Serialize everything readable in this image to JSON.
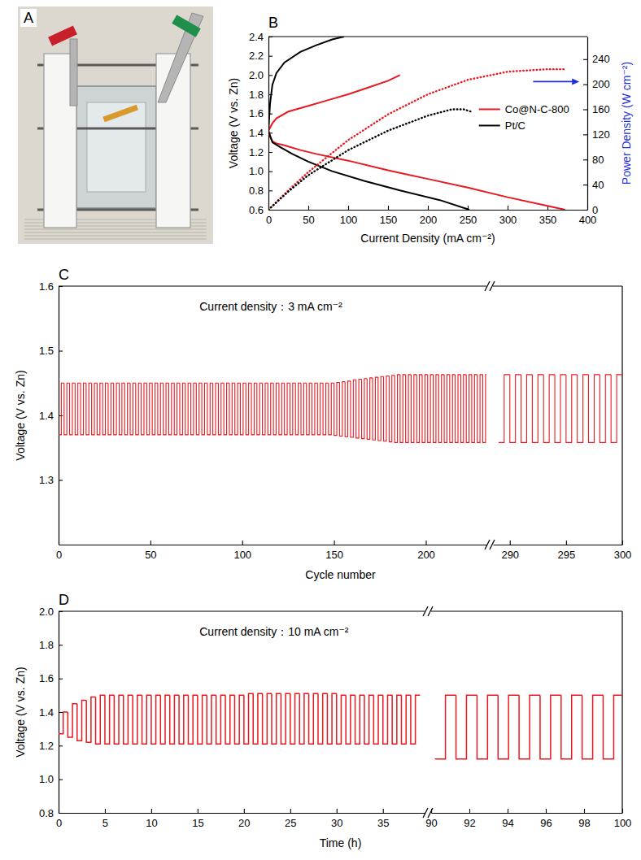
{
  "photo": {
    "panel": "A"
  },
  "chart_data": [
    {
      "panel": "B",
      "type": "line",
      "xlabel": "Current Density (mA cm⁻²)",
      "ylabel": "Voltage (V vs. Zn)",
      "y2label": "Power Density (W cm⁻²)",
      "xlim": [
        0,
        400
      ],
      "xticks": [
        0,
        50,
        100,
        150,
        200,
        250,
        300,
        350,
        400
      ],
      "ylim": [
        0.6,
        2.4
      ],
      "yticks": [
        0.6,
        0.8,
        {
          "value": 1,
          "label": "1.0"
        },
        1.2,
        1.4,
        1.6,
        1.8,
        {
          "value": 2,
          "label": "2.0"
        },
        2.2,
        2.4
      ],
      "y2lim": [
        0,
        276
      ],
      "y2ticks": [
        0,
        40,
        80,
        120,
        160,
        200,
        240
      ],
      "legend": "right",
      "series": [
        {
          "name": "Co@N-C-800",
          "color": "#e8191f",
          "line_style": "solid",
          "x": [
            0,
            2,
            5,
            10,
            20,
            40,
            60,
            100,
            150,
            200,
            250,
            300,
            350,
            372
          ],
          "values": [
            1.42,
            1.36,
            1.31,
            1.29,
            1.27,
            1.22,
            1.18,
            1.11,
            1.01,
            0.92,
            0.83,
            0.73,
            0.64,
            0.6
          ]
        },
        {
          "color": "#e8191f",
          "line_style": "solid",
          "x": [
            0,
            5,
            10,
            25,
            50,
            75,
            100,
            125,
            150,
            165
          ],
          "values": [
            1.42,
            1.5,
            1.55,
            1.62,
            1.68,
            1.74,
            1.8,
            1.87,
            1.94,
            2.0
          ]
        },
        {
          "name": "Pt/C",
          "color": "#000000",
          "line_style": "solid",
          "x": [
            0,
            5,
            15,
            30,
            50,
            80,
            120,
            165,
            215,
            252
          ],
          "values": [
            1.42,
            1.3,
            1.25,
            1.18,
            1.1,
            1.0,
            0.9,
            0.8,
            0.7,
            0.6
          ]
        },
        {
          "color": "#000000",
          "line_style": "solid",
          "x": [
            0,
            2,
            5,
            10,
            20,
            40,
            60,
            80,
            95
          ],
          "values": [
            1.42,
            1.7,
            1.9,
            2.02,
            2.13,
            2.24,
            2.31,
            2.37,
            2.4
          ]
        },
        {
          "color": "#e8191f",
          "line_style": "dotted",
          "axis": "y2",
          "x": [
            0,
            25,
            50,
            100,
            150,
            200,
            250,
            300,
            350,
            372
          ],
          "values": [
            0,
            31,
            60,
            111,
            152,
            184,
            207,
            220,
            224,
            224
          ]
        },
        {
          "color": "#000000",
          "line_style": "dotted",
          "axis": "y2",
          "x": [
            0,
            25,
            50,
            100,
            150,
            200,
            230,
            245,
            255
          ],
          "values": [
            0,
            29,
            55,
            95,
            126,
            150,
            160,
            160,
            156
          ]
        }
      ]
    },
    {
      "panel": "C",
      "type": "line",
      "annotation": "Current density：3 mA cm⁻²",
      "xlabel": "Cycle number",
      "ylabel": "Voltage (V vs. Zn)",
      "x_segments": [
        {
          "xlim": [
            0,
            233
          ],
          "xticks": [
            0,
            50,
            100,
            150,
            200
          ]
        },
        {
          "xlim": [
            288.5,
            300
          ],
          "xticks": [
            290,
            295,
            300
          ]
        }
      ],
      "ylim": [
        1.2,
        1.6
      ],
      "yticks": [
        1.3,
        1.4,
        1.5,
        1.6
      ],
      "x": [
        0,
        3,
        6,
        9,
        12,
        15,
        18,
        21,
        24,
        27,
        30,
        33,
        36,
        39,
        42,
        45,
        48,
        51,
        54,
        57,
        60,
        63,
        66,
        69,
        72,
        75,
        78,
        81,
        84,
        87,
        90,
        93,
        96,
        99,
        102,
        105,
        108,
        111,
        114,
        117,
        120,
        123,
        126,
        129,
        132,
        135,
        138,
        141,
        144,
        147,
        150,
        153,
        156,
        159,
        162,
        165,
        168,
        171,
        174,
        177,
        180,
        183,
        186,
        189,
        192,
        195,
        198,
        201,
        204,
        207,
        210,
        213,
        216,
        219,
        222,
        225,
        228,
        231,
        289,
        290,
        291,
        292,
        293,
        294,
        295,
        296,
        297,
        298,
        299
      ],
      "series": [
        {
          "color": "#e8191f",
          "values": [
            1.37,
            1.37,
            1.37,
            1.37,
            1.37,
            1.37,
            1.37,
            1.37,
            1.37,
            1.37,
            1.37,
            1.37,
            1.37,
            1.37,
            1.37,
            1.37,
            1.37,
            1.37,
            1.37,
            1.37,
            1.37,
            1.37,
            1.37,
            1.37,
            1.37,
            1.37,
            1.37,
            1.37,
            1.37,
            1.37,
            1.37,
            1.37,
            1.37,
            1.37,
            1.37,
            1.37,
            1.37,
            1.37,
            1.37,
            1.37,
            1.37,
            1.37,
            1.37,
            1.37,
            1.37,
            1.37,
            1.37,
            1.37,
            1.37,
            1.37,
            1.369,
            1.368,
            1.367,
            1.366,
            1.365,
            1.364,
            1.363,
            1.362,
            1.361,
            1.36,
            1.359,
            1.358,
            1.358,
            1.358,
            1.358,
            1.358,
            1.358,
            1.358,
            1.358,
            1.358,
            1.358,
            1.358,
            1.358,
            1.358,
            1.358,
            1.358,
            1.358,
            1.358,
            1.358,
            1.358,
            1.358,
            1.358,
            1.358,
            1.358,
            1.358,
            1.358,
            1.358,
            1.358,
            1.358
          ]
        },
        {
          "color": "#e8191f",
          "values": [
            1.45,
            1.45,
            1.45,
            1.45,
            1.45,
            1.45,
            1.45,
            1.45,
            1.45,
            1.45,
            1.45,
            1.45,
            1.45,
            1.45,
            1.45,
            1.45,
            1.45,
            1.45,
            1.45,
            1.45,
            1.45,
            1.45,
            1.45,
            1.45,
            1.45,
            1.45,
            1.45,
            1.45,
            1.45,
            1.45,
            1.45,
            1.45,
            1.45,
            1.45,
            1.45,
            1.45,
            1.45,
            1.45,
            1.45,
            1.45,
            1.45,
            1.45,
            1.45,
            1.45,
            1.45,
            1.45,
            1.45,
            1.45,
            1.45,
            1.45,
            1.451,
            1.452,
            1.453,
            1.455,
            1.456,
            1.457,
            1.458,
            1.459,
            1.46,
            1.461,
            1.462,
            1.463,
            1.463,
            1.463,
            1.463,
            1.463,
            1.463,
            1.463,
            1.463,
            1.463,
            1.463,
            1.463,
            1.463,
            1.463,
            1.463,
            1.463,
            1.463,
            1.463,
            1.463,
            1.463,
            1.463,
            1.463,
            1.463,
            1.463,
            1.463,
            1.463,
            1.463,
            1.463,
            1.463
          ]
        }
      ]
    },
    {
      "panel": "D",
      "type": "line",
      "annotation": "Current density：10 mA cm⁻²",
      "xlabel": "Time (h)",
      "ylabel": "Voltage (V vs. Zn)",
      "x_segments": [
        {
          "xlim": [
            0,
            39.5
          ],
          "xticks": [
            0,
            5,
            10,
            15,
            20,
            25,
            30,
            35
          ]
        },
        {
          "xlim": [
            90,
            100
          ],
          "xticks": [
            90,
            92,
            94,
            96,
            98,
            100
          ]
        }
      ],
      "ylim": [
        0.8,
        2.0
      ],
      "yticks": [
        0.8,
        {
          "value": 1,
          "label": "1.0"
        },
        1.2,
        1.4,
        1.6,
        1.8,
        {
          "value": 2,
          "label": "2.0"
        }
      ],
      "x": [
        0,
        1,
        2,
        3,
        4,
        5,
        6,
        7,
        8,
        9,
        10,
        11,
        12,
        13,
        14,
        15,
        16,
        17,
        18,
        19,
        20,
        21,
        22,
        23,
        24,
        25,
        26,
        27,
        28,
        29,
        30,
        31,
        32,
        33,
        34,
        35,
        36,
        37,
        38,
        90.2,
        91.3,
        92.4,
        93.5,
        94.6,
        95.7,
        96.8,
        97.9,
        99
      ],
      "series": [
        {
          "color": "#e8191f",
          "values": [
            1.27,
            1.25,
            1.23,
            1.22,
            1.21,
            1.21,
            1.21,
            1.21,
            1.21,
            1.21,
            1.21,
            1.21,
            1.21,
            1.21,
            1.21,
            1.21,
            1.21,
            1.21,
            1.21,
            1.21,
            1.21,
            1.21,
            1.21,
            1.21,
            1.21,
            1.21,
            1.21,
            1.21,
            1.21,
            1.21,
            1.21,
            1.21,
            1.21,
            1.21,
            1.21,
            1.21,
            1.21,
            1.21,
            1.21,
            1.12,
            1.12,
            1.12,
            1.12,
            1.12,
            1.12,
            1.12,
            1.12,
            1.12
          ]
        },
        {
          "color": "#e8191f",
          "values": [
            1.4,
            1.45,
            1.47,
            1.49,
            1.5,
            1.5,
            1.5,
            1.5,
            1.5,
            1.5,
            1.5,
            1.5,
            1.5,
            1.5,
            1.5,
            1.5,
            1.5,
            1.5,
            1.5,
            1.5,
            1.51,
            1.51,
            1.51,
            1.51,
            1.51,
            1.51,
            1.51,
            1.51,
            1.51,
            1.51,
            1.5,
            1.5,
            1.5,
            1.5,
            1.5,
            1.5,
            1.5,
            1.5,
            1.5,
            1.5,
            1.5,
            1.5,
            1.5,
            1.5,
            1.5,
            1.5,
            1.5,
            1.5
          ]
        }
      ]
    }
  ]
}
